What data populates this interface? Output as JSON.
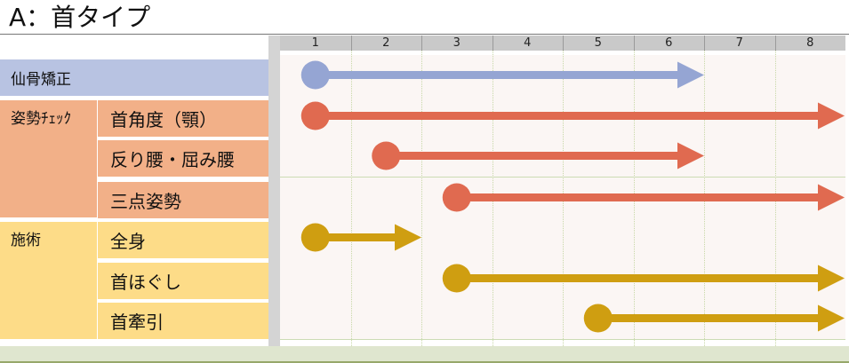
{
  "title": "A：首タイプ",
  "columns": [
    "1",
    "2",
    "3",
    "4",
    "5",
    "6",
    "7",
    "8"
  ],
  "colors": {
    "blue": "#95a5d3",
    "red": "#e06a50",
    "gold": "#cf9e11",
    "blue_bg": "#b8c3e2",
    "orange_bg": "#f2b088",
    "yellow_bg": "#fddc88"
  },
  "rows": [
    {
      "category": "仙骨矯正",
      "label": "",
      "color": "blue",
      "start": 1,
      "end": 6.5
    },
    {
      "category": "姿勢ﾁｪｯｸ",
      "label": "首角度（顎）",
      "color": "red",
      "start": 1,
      "end": 8.5
    },
    {
      "category": "",
      "label": "反り腰・屈み腰",
      "color": "red",
      "start": 2,
      "end": 6.5
    },
    {
      "category": "",
      "label": "三点姿勢",
      "color": "red",
      "start": 3,
      "end": 8.5
    },
    {
      "category": "施術",
      "label": "全身",
      "color": "gold",
      "start": 1,
      "end": 2.5
    },
    {
      "category": "",
      "label": "首ほぐし",
      "color": "gold",
      "start": 3,
      "end": 8.5
    },
    {
      "category": "",
      "label": "首牽引",
      "color": "gold",
      "start": 5,
      "end": 8.5
    }
  ]
}
